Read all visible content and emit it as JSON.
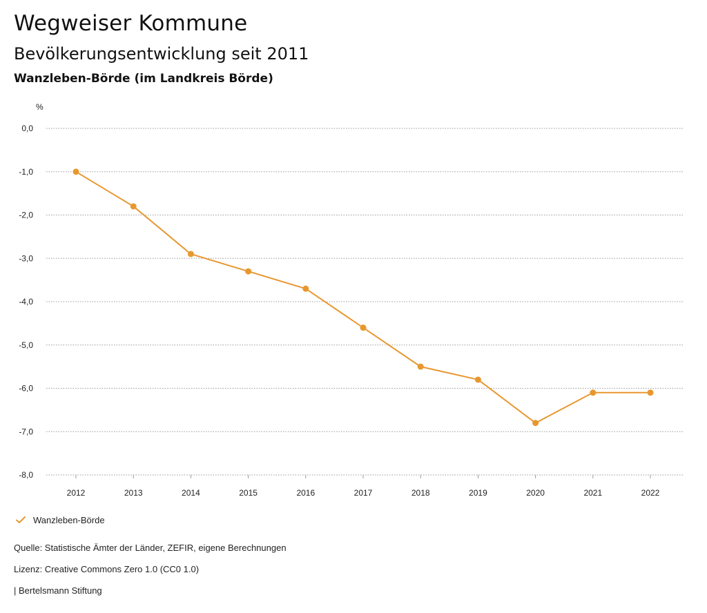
{
  "header": {
    "title": "Wegweiser Kommune",
    "subtitle": "Bevölkerungsentwicklung seit 2011",
    "region": "Wanzleben-Börde (im Landkreis Börde)"
  },
  "chart_data": {
    "type": "line",
    "title": "Bevölkerungsentwicklung seit 2011",
    "xlabel": "",
    "ylabel": "%",
    "categories": [
      "2012",
      "2013",
      "2014",
      "2015",
      "2016",
      "2017",
      "2018",
      "2019",
      "2020",
      "2021",
      "2022"
    ],
    "series": [
      {
        "name": "Wanzleben-Börde",
        "color": "#E8972F",
        "values": [
          -1.0,
          -1.8,
          -2.9,
          -3.3,
          -3.7,
          -4.6,
          -5.5,
          -5.8,
          -6.8,
          -6.1,
          -6.1
        ]
      }
    ],
    "yticks": [
      "0,0",
      "-1,0",
      "-2,0",
      "-3,0",
      "-4,0",
      "-5,0",
      "-6,0",
      "-7,0",
      "-8,0"
    ],
    "ylim": [
      -8.0,
      0.0
    ],
    "grid": true,
    "legend_position": "bottom-left"
  },
  "legend": {
    "label": "Wanzleben-Börde"
  },
  "footer": {
    "source": "Quelle: Statistische Ämter der Länder, ZEFIR, eigene Berechnungen",
    "license": "Lizenz: Creative Commons Zero 1.0 (CC0 1.0)",
    "publisher": "| Bertelsmann Stiftung"
  }
}
